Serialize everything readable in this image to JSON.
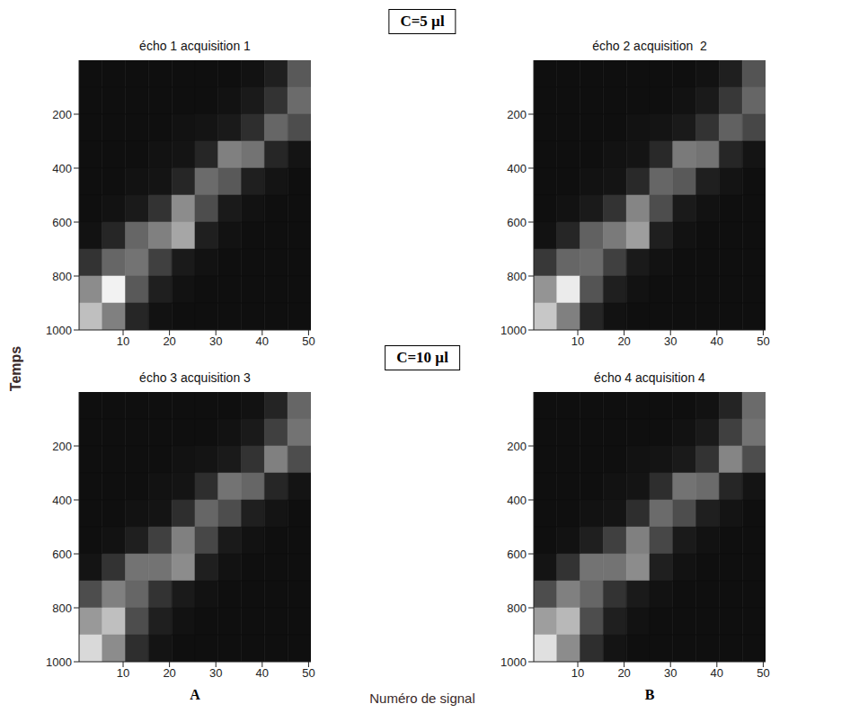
{
  "figure": {
    "y_label": "Temps",
    "x_label": "Numéro de signal",
    "groups": [
      "C=5 µl",
      "C=10 µl"
    ],
    "columns": [
      "A",
      "B"
    ]
  },
  "chart_data": [
    {
      "type": "heatmap",
      "title": "écho 1 acquisition 1",
      "xlim": [
        0.5,
        50.5
      ],
      "ylim": [
        0,
        1000
      ],
      "xticks": [
        10,
        20,
        30,
        40,
        50
      ],
      "yticks": [
        200,
        400,
        600,
        800,
        1000
      ],
      "x_bins": [
        0.5,
        5.5,
        10.5,
        15.5,
        20.5,
        25.5,
        30.5,
        35.5,
        40.5,
        45.5,
        50.5
      ],
      "y_bins": [
        0,
        100,
        200,
        300,
        400,
        500,
        600,
        700,
        800,
        900,
        1000
      ],
      "cells": [
        [
          0.06,
          0.06,
          0.06,
          0.06,
          0.06,
          0.06,
          0.06,
          0.07,
          0.12,
          0.35
        ],
        [
          0.06,
          0.06,
          0.06,
          0.06,
          0.06,
          0.06,
          0.07,
          0.1,
          0.2,
          0.42
        ],
        [
          0.06,
          0.06,
          0.06,
          0.06,
          0.07,
          0.08,
          0.1,
          0.18,
          0.4,
          0.3
        ],
        [
          0.06,
          0.06,
          0.06,
          0.07,
          0.08,
          0.15,
          0.5,
          0.45,
          0.15,
          0.08
        ],
        [
          0.06,
          0.06,
          0.07,
          0.08,
          0.15,
          0.42,
          0.35,
          0.12,
          0.08,
          0.06
        ],
        [
          0.06,
          0.07,
          0.1,
          0.2,
          0.55,
          0.3,
          0.1,
          0.07,
          0.06,
          0.06
        ],
        [
          0.07,
          0.15,
          0.4,
          0.5,
          0.65,
          0.12,
          0.07,
          0.06,
          0.06,
          0.06
        ],
        [
          0.2,
          0.4,
          0.45,
          0.25,
          0.1,
          0.07,
          0.06,
          0.06,
          0.06,
          0.06
        ],
        [
          0.55,
          0.95,
          0.35,
          0.12,
          0.07,
          0.06,
          0.06,
          0.06,
          0.06,
          0.06
        ],
        [
          0.75,
          0.5,
          0.15,
          0.07,
          0.06,
          0.06,
          0.06,
          0.06,
          0.06,
          0.06
        ]
      ]
    },
    {
      "type": "heatmap",
      "title": "écho 2 acquisition  2",
      "xlim": [
        0.5,
        50.5
      ],
      "ylim": [
        0,
        1000
      ],
      "xticks": [
        10,
        20,
        30,
        40,
        50
      ],
      "yticks": [
        200,
        400,
        600,
        800,
        1000
      ],
      "x_bins": [
        0.5,
        5.5,
        10.5,
        15.5,
        20.5,
        25.5,
        30.5,
        35.5,
        40.5,
        45.5,
        50.5
      ],
      "y_bins": [
        0,
        100,
        200,
        300,
        400,
        500,
        600,
        700,
        800,
        900,
        1000
      ],
      "cells": [
        [
          0.06,
          0.06,
          0.06,
          0.06,
          0.06,
          0.06,
          0.06,
          0.07,
          0.12,
          0.33
        ],
        [
          0.06,
          0.06,
          0.06,
          0.06,
          0.06,
          0.06,
          0.07,
          0.1,
          0.22,
          0.4
        ],
        [
          0.06,
          0.06,
          0.06,
          0.06,
          0.07,
          0.08,
          0.1,
          0.2,
          0.38,
          0.28
        ],
        [
          0.06,
          0.06,
          0.06,
          0.07,
          0.08,
          0.16,
          0.48,
          0.45,
          0.15,
          0.08
        ],
        [
          0.06,
          0.06,
          0.07,
          0.08,
          0.16,
          0.4,
          0.35,
          0.12,
          0.08,
          0.06
        ],
        [
          0.06,
          0.07,
          0.1,
          0.2,
          0.52,
          0.3,
          0.1,
          0.07,
          0.06,
          0.06
        ],
        [
          0.07,
          0.15,
          0.38,
          0.48,
          0.62,
          0.12,
          0.07,
          0.06,
          0.06,
          0.06
        ],
        [
          0.22,
          0.4,
          0.42,
          0.25,
          0.1,
          0.07,
          0.06,
          0.06,
          0.06,
          0.06
        ],
        [
          0.58,
          0.92,
          0.33,
          0.12,
          0.07,
          0.06,
          0.06,
          0.06,
          0.06,
          0.06
        ],
        [
          0.78,
          0.5,
          0.15,
          0.07,
          0.06,
          0.06,
          0.06,
          0.06,
          0.06,
          0.06
        ]
      ]
    },
    {
      "type": "heatmap",
      "title": "écho 3 acquisition 3",
      "xlim": [
        0.5,
        50.5
      ],
      "ylim": [
        0,
        1000
      ],
      "xticks": [
        10,
        20,
        30,
        40,
        50
      ],
      "yticks": [
        200,
        400,
        600,
        800,
        1000
      ],
      "x_bins": [
        0.5,
        5.5,
        10.5,
        15.5,
        20.5,
        25.5,
        30.5,
        35.5,
        40.5,
        45.5,
        50.5
      ],
      "y_bins": [
        0,
        100,
        200,
        300,
        400,
        500,
        600,
        700,
        800,
        900,
        1000
      ],
      "cells": [
        [
          0.06,
          0.06,
          0.06,
          0.06,
          0.06,
          0.06,
          0.06,
          0.07,
          0.14,
          0.4
        ],
        [
          0.06,
          0.06,
          0.06,
          0.06,
          0.06,
          0.06,
          0.07,
          0.1,
          0.25,
          0.45
        ],
        [
          0.06,
          0.06,
          0.06,
          0.06,
          0.07,
          0.08,
          0.1,
          0.2,
          0.5,
          0.3
        ],
        [
          0.06,
          0.06,
          0.06,
          0.07,
          0.08,
          0.18,
          0.45,
          0.4,
          0.15,
          0.08
        ],
        [
          0.06,
          0.06,
          0.07,
          0.08,
          0.18,
          0.4,
          0.3,
          0.12,
          0.08,
          0.06
        ],
        [
          0.06,
          0.07,
          0.12,
          0.25,
          0.5,
          0.28,
          0.1,
          0.07,
          0.06,
          0.06
        ],
        [
          0.08,
          0.2,
          0.45,
          0.45,
          0.55,
          0.12,
          0.07,
          0.06,
          0.06,
          0.06
        ],
        [
          0.3,
          0.5,
          0.4,
          0.2,
          0.1,
          0.07,
          0.06,
          0.06,
          0.06,
          0.06
        ],
        [
          0.6,
          0.75,
          0.3,
          0.12,
          0.07,
          0.06,
          0.06,
          0.06,
          0.06,
          0.06
        ],
        [
          0.85,
          0.55,
          0.18,
          0.08,
          0.06,
          0.06,
          0.06,
          0.06,
          0.06,
          0.06
        ]
      ]
    },
    {
      "type": "heatmap",
      "title": "écho 4 acquisition 4",
      "xlim": [
        0.5,
        50.5
      ],
      "ylim": [
        0,
        1000
      ],
      "xticks": [
        10,
        20,
        30,
        40,
        50
      ],
      "yticks": [
        200,
        400,
        600,
        800,
        1000
      ],
      "x_bins": [
        0.5,
        5.5,
        10.5,
        15.5,
        20.5,
        25.5,
        30.5,
        35.5,
        40.5,
        45.5,
        50.5
      ],
      "y_bins": [
        0,
        100,
        200,
        300,
        400,
        500,
        600,
        700,
        800,
        900,
        1000
      ],
      "cells": [
        [
          0.06,
          0.06,
          0.06,
          0.06,
          0.06,
          0.06,
          0.06,
          0.07,
          0.14,
          0.42
        ],
        [
          0.06,
          0.06,
          0.06,
          0.06,
          0.06,
          0.06,
          0.07,
          0.1,
          0.25,
          0.45
        ],
        [
          0.06,
          0.06,
          0.06,
          0.06,
          0.07,
          0.08,
          0.1,
          0.2,
          0.52,
          0.3
        ],
        [
          0.06,
          0.06,
          0.06,
          0.07,
          0.08,
          0.18,
          0.45,
          0.42,
          0.15,
          0.08
        ],
        [
          0.06,
          0.06,
          0.07,
          0.08,
          0.18,
          0.42,
          0.3,
          0.12,
          0.08,
          0.06
        ],
        [
          0.06,
          0.07,
          0.12,
          0.25,
          0.5,
          0.28,
          0.1,
          0.07,
          0.06,
          0.06
        ],
        [
          0.08,
          0.2,
          0.45,
          0.45,
          0.55,
          0.12,
          0.07,
          0.06,
          0.06,
          0.06
        ],
        [
          0.3,
          0.5,
          0.4,
          0.2,
          0.1,
          0.07,
          0.06,
          0.06,
          0.06,
          0.06
        ],
        [
          0.62,
          0.72,
          0.3,
          0.12,
          0.07,
          0.06,
          0.06,
          0.06,
          0.06,
          0.06
        ],
        [
          0.88,
          0.55,
          0.18,
          0.08,
          0.06,
          0.06,
          0.06,
          0.06,
          0.06,
          0.06
        ]
      ]
    }
  ]
}
